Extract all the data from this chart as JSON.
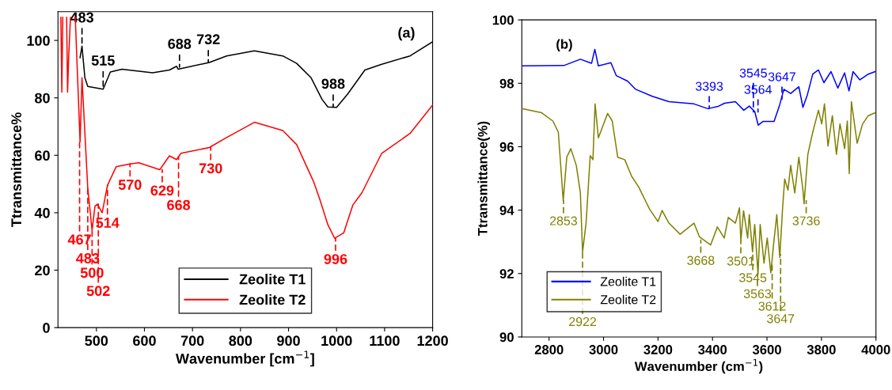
{
  "chart_data": [
    {
      "type": "line",
      "title": "(a)",
      "xlabel": "Wavenumber [cm$^{−1}$]",
      "ylabel": "Ttransmittance%",
      "xlim": [
        420,
        1200
      ],
      "xticks": [
        500,
        600,
        700,
        800,
        900,
        1000,
        1100,
        1200
      ],
      "ylim": [
        0,
        110
      ],
      "yticks": [
        0,
        20,
        40,
        60,
        80,
        100
      ],
      "legend": "bottom",
      "series": [
        {
          "name": "Zeolite T1",
          "color": "#000000",
          "x": [
            466,
            470,
            476,
            482,
            514,
            529,
            553,
            617,
            652,
            667,
            670,
            735,
            771,
            829,
            888,
            917,
            947,
            970,
            982,
            1000,
            1023,
            1059,
            1094,
            1153,
            1200
          ],
          "values": [
            94,
            98,
            87,
            84,
            83,
            89,
            90,
            88.7,
            89.7,
            91,
            90,
            92.3,
            94.6,
            96.4,
            94.6,
            92,
            87,
            79.4,
            76.8,
            76.7,
            81.3,
            89.7,
            91.7,
            94.6,
            99.5
          ]
        },
        {
          "name": "Zeolite T2",
          "color": "#ff0000",
          "x": [
            426,
            428,
            430,
            434,
            438,
            440,
            442,
            446,
            452,
            456,
            466,
            470,
            482,
            491,
            497,
            502,
            512,
            523,
            541,
            570,
            588,
            632,
            652,
            667,
            676,
            735,
            771,
            829,
            888,
            917,
            952,
            965,
            982,
            996,
            1015,
            1034,
            1053,
            1094,
            1153,
            1200
          ],
          "values": [
            108,
            82,
            108,
            null,
            108,
            82,
            93,
            108,
            null,
            108,
            64.7,
            87,
            48.6,
            33.9,
            42.3,
            43,
            40,
            49.5,
            56,
            57,
            57.4,
            55,
            59.8,
            58.5,
            60.7,
            62.7,
            66.2,
            71.5,
            68.6,
            63.7,
            50.9,
            44.7,
            35.8,
            31.1,
            33,
            42.7,
            47,
            60.7,
            67.6,
            77.5
          ]
        }
      ],
      "annotations": [
        {
          "text": "483",
          "x": 470,
          "y": 98
        },
        {
          "text": "515",
          "x": 514,
          "y": 83
        },
        {
          "text": "688",
          "x": 673,
          "y": 90.7
        },
        {
          "text": "732",
          "x": 733,
          "y": 92.3
        },
        {
          "text": "988",
          "x": 993,
          "y": 76.8
        },
        {
          "text": "467",
          "x": 465,
          "y": 64.7
        },
        {
          "text": "483",
          "x": 482,
          "y": 48.6
        },
        {
          "text": "500",
          "x": 491,
          "y": 34
        },
        {
          "text": "502",
          "x": 504,
          "y": 43
        },
        {
          "text": "514",
          "x": 523,
          "y": 49.5
        },
        {
          "text": "570",
          "x": 570,
          "y": 57
        },
        {
          "text": "629",
          "x": 637,
          "y": 55
        },
        {
          "text": "668",
          "x": 671,
          "y": 59.5
        },
        {
          "text": "730",
          "x": 738,
          "y": 62.7
        },
        {
          "text": "996",
          "x": 998,
          "y": 31.1
        }
      ]
    },
    {
      "type": "line",
      "title": "(b)",
      "xlabel": "Wavenumber (cm$^{−1}$)",
      "ylabel": "Ttransmittance(%)",
      "xlim": [
        2700,
        4000
      ],
      "xticks": [
        2800,
        3000,
        3200,
        3400,
        3600,
        3800,
        4000
      ],
      "ylim": [
        90,
        100
      ],
      "yticks": [
        90,
        92,
        94,
        96,
        98,
        100
      ],
      "legend": "bottom left",
      "series": [
        {
          "name": "Zeolite T1",
          "color": "#0000ff",
          "x": [
            2700,
            2854,
            2915,
            2956,
            2968,
            2981,
            3027,
            3047,
            3088,
            3118,
            3179,
            3240,
            3332,
            3383,
            3423,
            3444,
            3484,
            3515,
            3535,
            3555,
            3568,
            3586,
            3626,
            3647,
            3662,
            3687,
            3717,
            3732,
            3748,
            3768,
            3789,
            3809,
            3835,
            3860,
            3885,
            3901,
            3916,
            3941,
            3972,
            3997
          ],
          "values": [
            98.55,
            98.56,
            98.76,
            98.63,
            99.07,
            98.55,
            98.65,
            98.24,
            98.07,
            97.81,
            97.59,
            97.42,
            97.35,
            97.2,
            97.28,
            97.37,
            97.42,
            97.15,
            97.28,
            97.11,
            96.68,
            96.8,
            96.8,
            97.33,
            97.81,
            97.68,
            97.89,
            97.24,
            97.63,
            98.29,
            98.42,
            98.02,
            98.37,
            97.85,
            98.33,
            97.76,
            98.37,
            98.11,
            98.29,
            98.37
          ]
        },
        {
          "name": "Zeolite T2",
          "color": "#808000",
          "x": [
            2700,
            2773,
            2814,
            2834,
            2852,
            2865,
            2880,
            2900,
            2915,
            2923,
            2936,
            2951,
            2961,
            2969,
            2981,
            3015,
            3032,
            3052,
            3078,
            3103,
            3129,
            3169,
            3200,
            3215,
            3240,
            3281,
            3332,
            3352,
            3393,
            3418,
            3443,
            3458,
            3484,
            3499,
            3504,
            3514,
            3529,
            3535,
            3547,
            3555,
            3567,
            3575,
            3589,
            3601,
            3614,
            3626,
            3636,
            3647,
            3657,
            3665,
            3677,
            3687,
            3702,
            3717,
            3732,
            3736,
            3750,
            3768,
            3789,
            3801,
            3811,
            3824,
            3840,
            3855,
            3868,
            3885,
            3895,
            3902,
            3910,
            3931,
            3951,
            3972,
            3997
          ],
          "values": [
            97.2,
            97.07,
            96.81,
            96.46,
            94.3,
            95.67,
            95.94,
            95.41,
            94.54,
            92.68,
            93.6,
            95.72,
            95.59,
            97.35,
            96.28,
            97.05,
            96.81,
            95.67,
            95.59,
            95.07,
            94.73,
            94.03,
            93.64,
            93.99,
            93.59,
            93.24,
            93.59,
            93.16,
            92.9,
            93.47,
            93.12,
            93.77,
            93.59,
            94.07,
            93.03,
            93.98,
            93.12,
            93.86,
            92.68,
            93.55,
            91.98,
            93.55,
            92.33,
            93.12,
            92.02,
            93.07,
            93.86,
            92.51,
            94.03,
            94.98,
            94.63,
            95.41,
            94.54,
            95.67,
            94.63,
            94.2,
            95.76,
            96.46,
            97.15,
            96.72,
            97.35,
            96.02,
            96.98,
            95.76,
            96.72,
            95.94,
            96.81,
            95.15,
            97.42,
            96.11,
            96.72,
            96.98,
            97.07
          ]
        }
      ],
      "annotations": [
        {
          "text": "3393",
          "x": 3388,
          "y": 97.2
        },
        {
          "text": "3564",
          "x": 3567,
          "y": 97.1
        },
        {
          "text": "3647",
          "x": 3655,
          "y": 97.5
        },
        {
          "text": "3545",
          "x": 3550,
          "y": 97.1
        },
        {
          "text": "2853",
          "x": 2853,
          "y": 94.3
        },
        {
          "text": "2922",
          "x": 2923,
          "y": 92.68
        },
        {
          "text": "3668",
          "x": 3357,
          "y": 93.05
        },
        {
          "text": "3501",
          "x": 3504,
          "y": 93.03
        },
        {
          "text": "3545",
          "x": 3548,
          "y": 92.68
        },
        {
          "text": "3563",
          "x": 3565,
          "y": 92.0
        },
        {
          "text": "3612",
          "x": 3619,
          "y": 92.3
        },
        {
          "text": "3647",
          "x": 3650,
          "y": 92.6
        },
        {
          "text": "3736",
          "x": 3744,
          "y": 94.3
        }
      ]
    }
  ]
}
